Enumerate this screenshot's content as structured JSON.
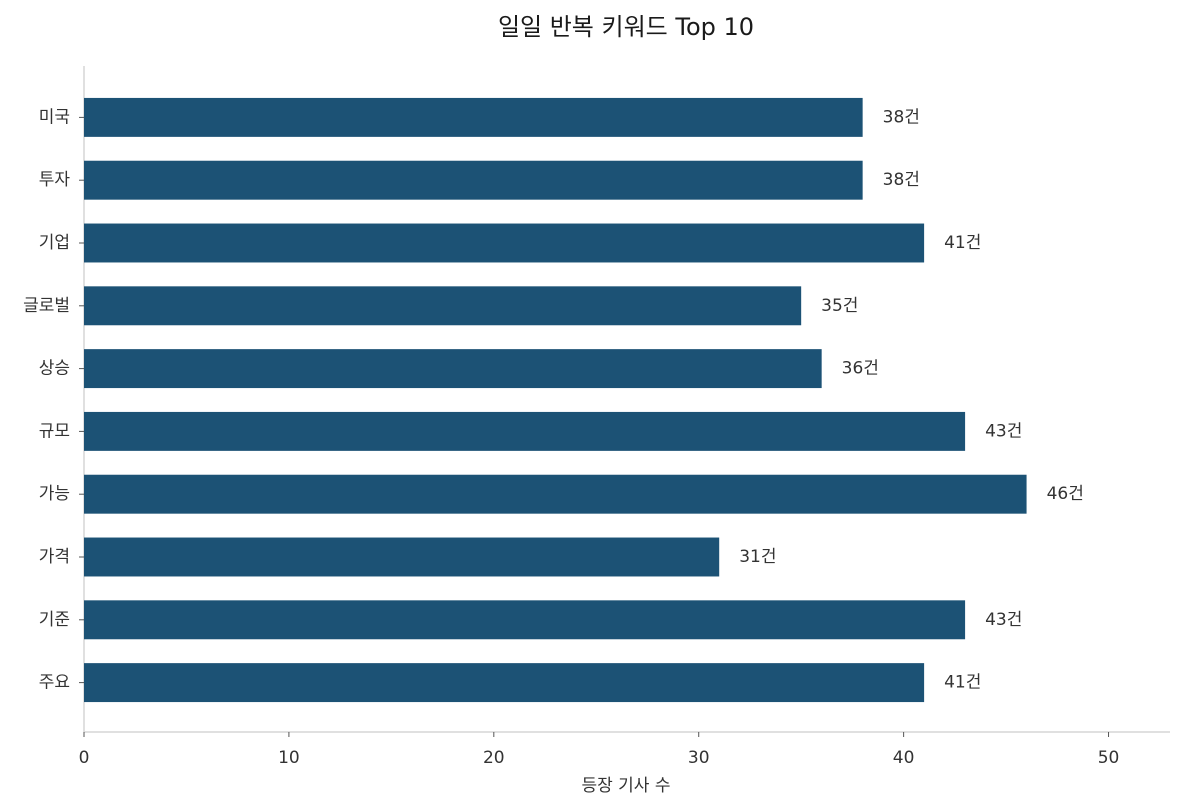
{
  "chart_data": {
    "type": "barh",
    "title": "일일 반복 키워드 Top 10",
    "xlabel": "등장 기사 수",
    "categories": [
      "미국",
      "투자",
      "기업",
      "글로벌",
      "상승",
      "규모",
      "가능",
      "가격",
      "기준",
      "주요"
    ],
    "values": [
      38,
      38,
      41,
      35,
      36,
      43,
      46,
      31,
      43,
      41
    ],
    "value_labels": [
      "38건",
      "38건",
      "41건",
      "35건",
      "36건",
      "43건",
      "46건",
      "31건",
      "43건",
      "41건"
    ],
    "color": "#1c5275",
    "xlim": [
      0,
      53
    ],
    "xticks": [
      0,
      10,
      20,
      30,
      40,
      50
    ],
    "grid": false
  }
}
